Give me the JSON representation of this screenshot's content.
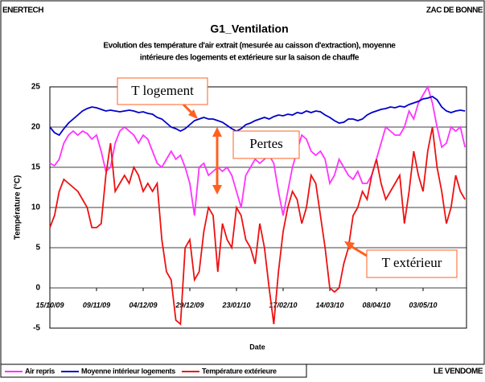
{
  "header": {
    "left": "ENERTECH",
    "right": "ZAC DE BONNE"
  },
  "footer": {
    "right": "LE VENDOME"
  },
  "chart_data": {
    "type": "line",
    "title": "G1_Ventilation",
    "subtitle": [
      "Evolution des température d'air extrait (mesurée au caisson d'extraction), moyenne",
      "intérieure des logements et extérieure sur la saison de chauffe"
    ],
    "x_label": "Date",
    "y_label": "Température (°C)",
    "annotations": [
      "T logement",
      "Pertes",
      "T extérieur"
    ],
    "categories": [
      "15/10/09",
      null,
      null,
      null,
      null,
      null,
      null,
      null,
      null,
      null,
      "09/11/09",
      null,
      null,
      null,
      null,
      null,
      null,
      null,
      null,
      null,
      "04/12/09",
      null,
      null,
      null,
      null,
      null,
      null,
      null,
      null,
      null,
      "29/12/09",
      null,
      null,
      null,
      null,
      null,
      null,
      null,
      null,
      null,
      "23/01/10",
      null,
      null,
      null,
      null,
      null,
      null,
      null,
      null,
      null,
      "17/02/10",
      null,
      null,
      null,
      null,
      null,
      null,
      null,
      null,
      null,
      "14/03/10",
      null,
      null,
      null,
      null,
      null,
      null,
      null,
      null,
      null,
      "08/04/10",
      null,
      null,
      null,
      null,
      null,
      null,
      null,
      null,
      null,
      "03/05/10",
      null,
      null,
      null,
      null,
      null,
      null,
      null,
      null,
      null
    ],
    "series": [
      {
        "name": "Air repris",
        "color": "#ff33ff",
        "values": [
          15.5,
          15.2,
          16,
          18,
          19,
          19.5,
          19,
          19.5,
          19.2,
          18.5,
          19,
          17,
          14.5,
          15,
          18,
          19.5,
          20,
          19.5,
          19,
          18,
          19,
          18.5,
          17,
          15.5,
          15,
          16,
          17,
          16,
          16.5,
          15,
          13,
          9,
          15,
          15.5,
          14,
          14.5,
          15,
          14.5,
          15,
          14,
          12,
          10,
          14,
          15,
          16,
          15.5,
          16,
          16.5,
          15.5,
          12,
          9,
          12,
          15,
          17,
          19,
          18.5,
          17,
          16.5,
          17,
          16,
          13,
          14,
          16,
          15,
          14,
          13.5,
          14.5,
          13,
          13,
          14,
          16,
          18,
          20,
          19.5,
          19,
          19,
          20,
          22,
          21,
          23,
          24,
          25,
          23,
          20,
          17.5,
          18,
          20,
          19.5,
          20,
          17.5
        ]
      },
      {
        "name": "Moyenne intérieur logements",
        "color": "#0000cc",
        "values": [
          20,
          19.3,
          19,
          19.8,
          20.5,
          21,
          21.5,
          22,
          22.3,
          22.5,
          22.4,
          22.2,
          22,
          22.1,
          22,
          21.9,
          22,
          22.1,
          22,
          21.8,
          21.9,
          21.7,
          21.6,
          21.2,
          21,
          20.5,
          20,
          19.8,
          19.5,
          19.8,
          20.3,
          20.8,
          21,
          21.2,
          21,
          21,
          20.8,
          20.6,
          20.2,
          19.8,
          19.5,
          19.8,
          20.3,
          20.5,
          20.8,
          21,
          21.2,
          21,
          21.3,
          21.5,
          21.4,
          21.6,
          21.5,
          21.8,
          21.7,
          22,
          21.8,
          22,
          21.9,
          21.5,
          21.2,
          20.8,
          20.5,
          20.6,
          21,
          21,
          20.8,
          21,
          21.5,
          21.8,
          22,
          22.2,
          22.3,
          22.5,
          22.4,
          22.6,
          22.5,
          22.8,
          23,
          23.2,
          23.5,
          23.6,
          23.8,
          23.4,
          22.5,
          22,
          21.8,
          22,
          22.1,
          22
        ]
      },
      {
        "name": "Température extérieure",
        "color": "#ee1111",
        "values": [
          7.5,
          9,
          12,
          13.5,
          13,
          12.5,
          12,
          11,
          10,
          7.5,
          7.5,
          8,
          14,
          18,
          12,
          13,
          14,
          13,
          15,
          14,
          12,
          13,
          12,
          13,
          6,
          2,
          1,
          -4,
          -4.5,
          5,
          6,
          1,
          2,
          7,
          10,
          9,
          2,
          8,
          6,
          5,
          10,
          9,
          6,
          5,
          3,
          8,
          5,
          0,
          -4.5,
          2,
          7,
          10,
          12,
          11,
          8,
          10,
          14,
          13,
          9,
          5,
          0,
          -0.5,
          0,
          3,
          5,
          9,
          10,
          12,
          11,
          14,
          16,
          13,
          11,
          12,
          13,
          14,
          8,
          12,
          17,
          14,
          12,
          17,
          20,
          15,
          12,
          8,
          10,
          14,
          12,
          11
        ]
      }
    ],
    "ylim": [
      -5,
      25
    ],
    "yticks": [
      -5,
      0,
      5,
      10,
      15,
      20,
      25
    ],
    "grid": true
  }
}
